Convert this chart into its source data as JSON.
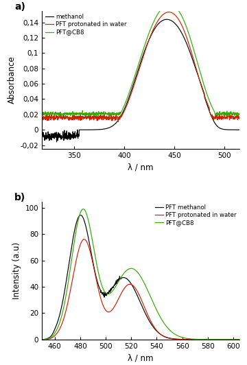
{
  "panel_a": {
    "title": "a)",
    "xlabel": "λ / nm",
    "ylabel": "Absorbance",
    "xlim": [
      318,
      515
    ],
    "ylim": [
      -0.025,
      0.155
    ],
    "yticks": [
      -0.02,
      0.0,
      0.02,
      0.04,
      0.06,
      0.08,
      0.1,
      0.12,
      0.14
    ],
    "xticks": [
      350,
      400,
      450,
      500
    ],
    "legend": [
      "methanol",
      "PFT protonated in water",
      "PFT@CB8"
    ],
    "colors": [
      "black",
      "#cc2200",
      "#33aa00"
    ]
  },
  "panel_b": {
    "title": "b)",
    "xlabel": "λ / nm",
    "ylabel": "Intensity (a.u)",
    "xlim": [
      450,
      605
    ],
    "ylim": [
      0,
      105
    ],
    "yticks": [
      0,
      20,
      40,
      60,
      80,
      100
    ],
    "xticks": [
      460,
      480,
      500,
      520,
      540,
      560,
      580,
      600
    ],
    "legend": [
      "PFT methanol",
      "PFT protonated in water",
      "PFT@CB8"
    ],
    "colors": [
      "black",
      "#cc2200",
      "#33aa00"
    ]
  },
  "background_color": "#ffffff",
  "fig_background": "#ffffff"
}
